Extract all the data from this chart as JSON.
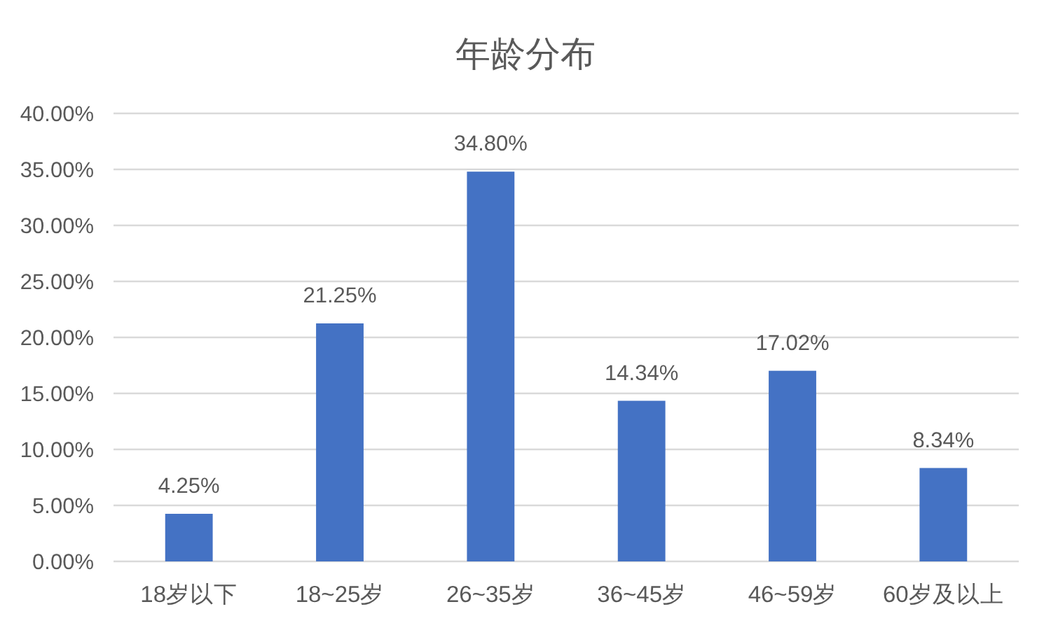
{
  "chart_data": {
    "type": "bar",
    "title": "年龄分布",
    "categories": [
      "18岁以下",
      "18~25岁",
      "26~35岁",
      "36~45岁",
      "46~59岁",
      "60岁及以上"
    ],
    "values": [
      4.25,
      21.25,
      34.8,
      14.34,
      17.02,
      8.34
    ],
    "value_labels": [
      "4.25%",
      "21.25%",
      "34.80%",
      "14.34%",
      "17.02%",
      "8.34%"
    ],
    "color": "#4472c4",
    "ylim": [
      0,
      40
    ],
    "yticks": [
      {
        "value": 0,
        "label": "0.00%"
      },
      {
        "value": 5,
        "label": "5.00%"
      },
      {
        "value": 10,
        "label": "10.00%"
      },
      {
        "value": 15,
        "label": "15.00%"
      },
      {
        "value": 20,
        "label": "20.00%"
      },
      {
        "value": 25,
        "label": "25.00%"
      },
      {
        "value": 30,
        "label": "30.00%"
      },
      {
        "value": 35,
        "label": "35.00%"
      },
      {
        "value": 40,
        "label": "40.00%"
      }
    ],
    "grid": "y"
  }
}
